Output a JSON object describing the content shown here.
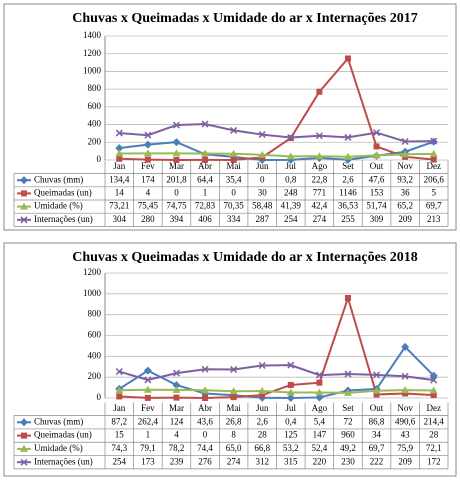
{
  "chart_data": [
    {
      "type": "line",
      "title": "Chuvas x Queimadas x Umidade do ar x Internações  2017",
      "categories": [
        "Jan",
        "Fev",
        "Mar",
        "Abr",
        "Mai",
        "Jun",
        "Jul",
        "Ago",
        "Set",
        "Out",
        "Nov",
        "Dez"
      ],
      "ylim": [
        0,
        1400
      ],
      "yticks": [
        0,
        200,
        400,
        600,
        800,
        1000,
        1200,
        1400
      ],
      "grid": true,
      "series": [
        {
          "name": "Chuvas (mm)",
          "color": "#4a7ebb",
          "marker": "diamond",
          "values": [
            134.4,
            174,
            201.8,
            64.4,
            35.4,
            0,
            0.8,
            22.8,
            2.6,
            47.6,
            93.2,
            206.6
          ],
          "value_labels": [
            "134,4",
            "174",
            "201,8",
            "64,4",
            "35,4",
            "0",
            "0,8",
            "22,8",
            "2,6",
            "47,6",
            "93,2",
            "206,6"
          ]
        },
        {
          "name": "Queimadas (un)",
          "color": "#be4b48",
          "marker": "square",
          "values": [
            14,
            4,
            0,
            1,
            0,
            30,
            248,
            771,
            1146,
            153,
            36,
            5
          ],
          "value_labels": [
            "14",
            "4",
            "0",
            "1",
            "0",
            "30",
            "248",
            "771",
            "1146",
            "153",
            "36",
            "5"
          ]
        },
        {
          "name": "Umidade (%)",
          "color": "#98b954",
          "marker": "triangle",
          "values": [
            73.21,
            75.45,
            74.75,
            72.83,
            70.35,
            58.48,
            41.39,
            42.4,
            36.53,
            51.74,
            65.2,
            69.7
          ],
          "value_labels": [
            "73,21",
            "75,45",
            "74,75",
            "72,83",
            "70,35",
            "58,48",
            "41,39",
            "42,4",
            "36,53",
            "51,74",
            "65,2",
            "69,7"
          ]
        },
        {
          "name": "Internações (un)",
          "color": "#7d60a0",
          "marker": "x",
          "values": [
            304,
            280,
            394,
            406,
            334,
            287,
            254,
            274,
            255,
            309,
            209,
            213
          ],
          "value_labels": [
            "304",
            "280",
            "394",
            "406",
            "334",
            "287",
            "254",
            "274",
            "255",
            "309",
            "209",
            "213"
          ]
        }
      ]
    },
    {
      "type": "line",
      "title": "Chuvas x Queimadas x Umidade do ar x Internações  2018",
      "categories": [
        "Jan",
        "Fev",
        "Mar",
        "Abr",
        "Mai",
        "Jun",
        "Jul",
        "Ago",
        "Set",
        "Out",
        "Nov",
        "Dez"
      ],
      "ylim": [
        0,
        1200
      ],
      "yticks": [
        0,
        200,
        400,
        600,
        800,
        1000,
        1200
      ],
      "grid": true,
      "series": [
        {
          "name": "Chuvas (mm)",
          "color": "#4a7ebb",
          "marker": "diamond",
          "values": [
            87.2,
            262.4,
            124,
            43.6,
            26.8,
            2.6,
            0.4,
            5.4,
            72,
            86.8,
            490.6,
            214.4
          ],
          "value_labels": [
            "87,2",
            "262,4",
            "124",
            "43,6",
            "26,8",
            "2,6",
            "0,4",
            "5,4",
            "72",
            "86,8",
            "490,6",
            "214,4"
          ]
        },
        {
          "name": "Queimadas (un)",
          "color": "#be4b48",
          "marker": "square",
          "values": [
            15,
            1,
            4,
            0,
            8,
            28,
            125,
            147,
            960,
            34,
            43,
            28
          ],
          "value_labels": [
            "15",
            "1",
            "4",
            "0",
            "8",
            "28",
            "125",
            "147",
            "960",
            "34",
            "43",
            "28"
          ]
        },
        {
          "name": "Umidade (%)",
          "color": "#98b954",
          "marker": "triangle",
          "values": [
            74.3,
            79.1,
            78.2,
            74.4,
            65,
            66.8,
            53.2,
            52.4,
            49.2,
            69.7,
            75.9,
            72.1
          ],
          "value_labels": [
            "74,3",
            "79,1",
            "78,2",
            "74,4",
            "65,0",
            "66,8",
            "53,2",
            "52,4",
            "49,2",
            "69,7",
            "75,9",
            "72,1"
          ]
        },
        {
          "name": "Internações (un)",
          "color": "#7d60a0",
          "marker": "x",
          "values": [
            254,
            173,
            239,
            276,
            274,
            312,
            315,
            220,
            230,
            222,
            209,
            172
          ],
          "value_labels": [
            "254",
            "173",
            "239",
            "276",
            "274",
            "312",
            "315",
            "220",
            "230",
            "222",
            "209",
            "172"
          ]
        }
      ]
    }
  ]
}
